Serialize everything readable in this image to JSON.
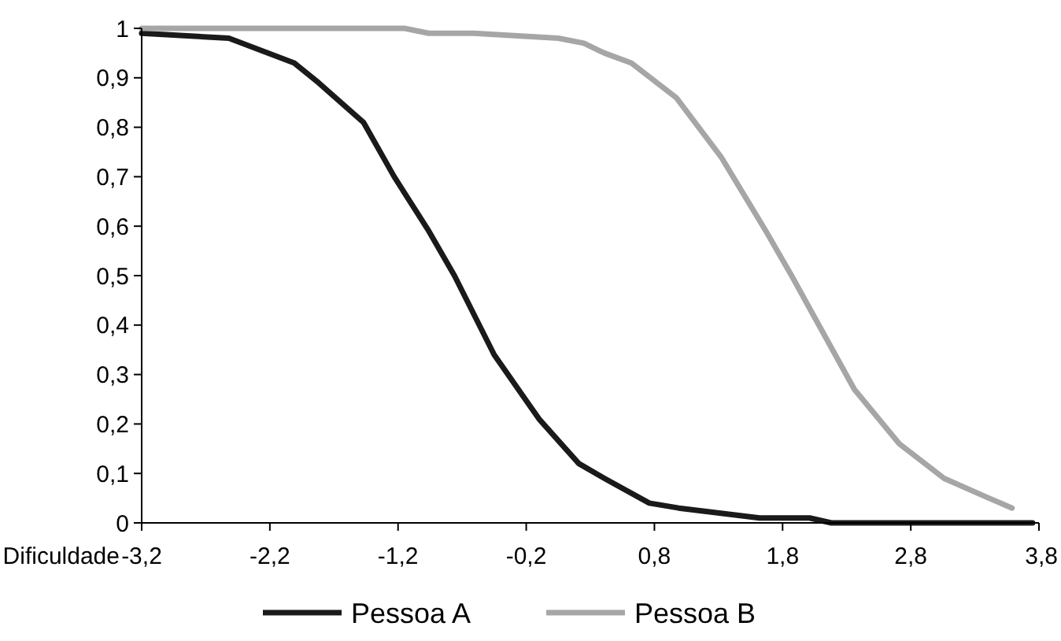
{
  "chart_data": {
    "type": "line",
    "xlabel": "Dificuldade",
    "xlim": [
      -3.2,
      3.8
    ],
    "xticks": [
      {
        "value": -3.2,
        "label": "-3,2"
      },
      {
        "value": -2.2,
        "label": "-2,2"
      },
      {
        "value": -1.2,
        "label": "-1,2"
      },
      {
        "value": -0.2,
        "label": "-0,2"
      },
      {
        "value": 0.8,
        "label": "0,8"
      },
      {
        "value": 1.8,
        "label": "1,8"
      },
      {
        "value": 2.8,
        "label": "2,8"
      },
      {
        "value": 3.8,
        "label": "3,8"
      }
    ],
    "ylim": [
      0,
      1
    ],
    "yticks": [
      0,
      {
        "value": 0.1,
        "label": "0,1"
      },
      {
        "value": 0.2,
        "label": "0,2"
      },
      {
        "value": 0.3,
        "label": "0,3"
      },
      {
        "value": 0.4,
        "label": "0,4"
      },
      {
        "value": 0.5,
        "label": "0,5"
      },
      {
        "value": 0.6,
        "label": "0,6"
      },
      {
        "value": 0.7,
        "label": "0,7"
      },
      {
        "value": 0.8,
        "label": "0,8"
      },
      {
        "value": 0.9,
        "label": "0,9"
      },
      1
    ],
    "legend": "bottom",
    "grid": false,
    "marker": "none",
    "line_style": "solid",
    "series": [
      {
        "name": "Pessoa A",
        "color": "#1a1a1a",
        "x": [
          -3.2,
          -2.52,
          -2.01,
          -1.82,
          -1.47,
          -1.23,
          -0.96,
          -0.76,
          -0.45,
          -0.1,
          0.21,
          0.41,
          0.76,
          0.99,
          1.62,
          2.01,
          2.18,
          3.75
        ],
        "values": [
          0.99,
          0.98,
          0.93,
          0.89,
          0.81,
          0.7,
          0.59,
          0.5,
          0.34,
          0.21,
          0.12,
          0.09,
          0.04,
          0.03,
          0.01,
          0.01,
          0,
          0
        ]
      },
      {
        "name": "Pessoa B",
        "color": "#a6a6a6",
        "x": [
          -3.2,
          -1.15,
          -0.96,
          -0.61,
          0.05,
          0.25,
          0.41,
          0.62,
          0.97,
          1.32,
          1.67,
          1.87,
          2.36,
          2.71,
          3.06,
          3.41,
          3.59
        ],
        "values": [
          1,
          1,
          0.99,
          0.99,
          0.98,
          0.97,
          0.95,
          0.93,
          0.86,
          0.74,
          0.59,
          0.5,
          0.27,
          0.16,
          0.09,
          0.05,
          0.03
        ]
      }
    ]
  }
}
